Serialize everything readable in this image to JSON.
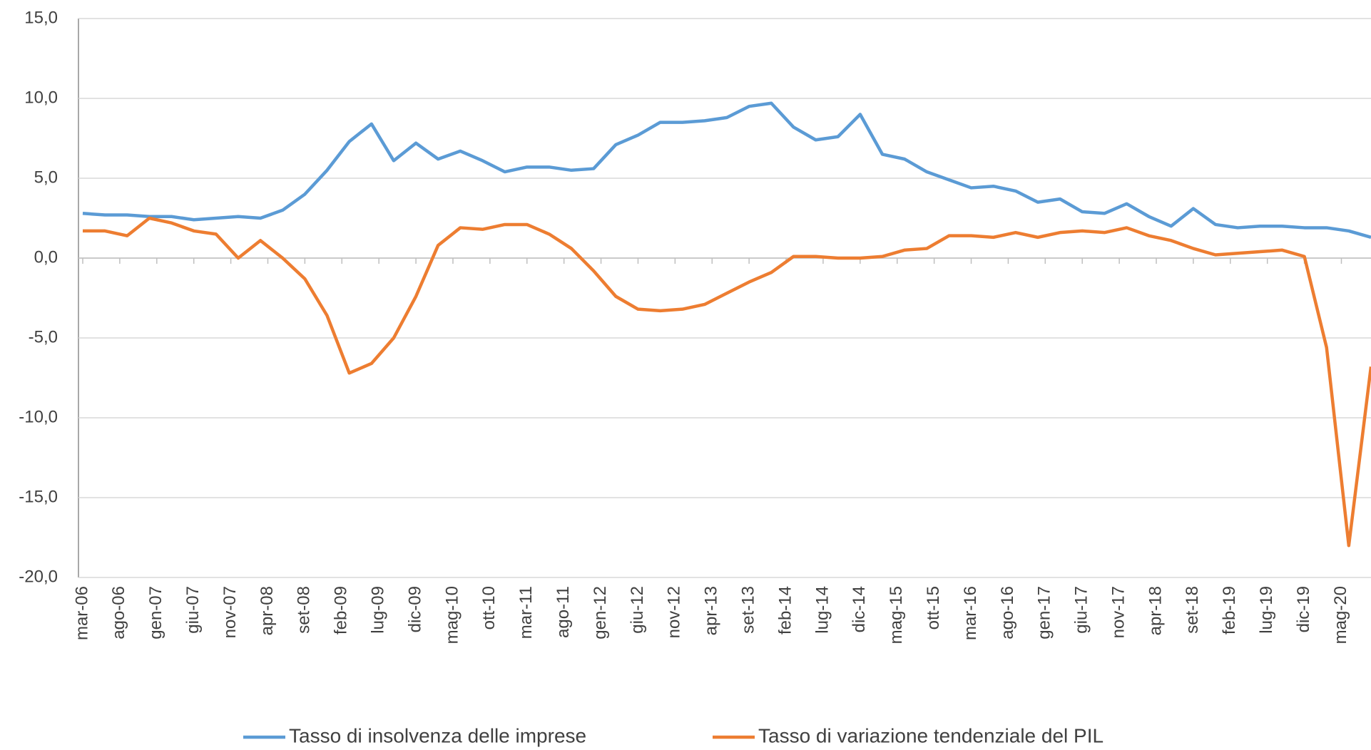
{
  "chart_data": {
    "type": "line",
    "x": [
      0,
      3,
      6,
      9,
      12,
      15,
      18,
      21,
      24,
      27,
      30,
      33,
      36,
      39,
      42,
      45,
      48,
      51,
      54,
      57,
      60,
      63,
      66,
      69,
      72,
      75,
      78,
      81,
      84,
      87,
      90,
      93,
      96,
      99,
      102,
      105,
      108,
      111,
      114,
      117,
      120,
      123,
      126,
      129,
      132,
      135,
      138,
      141,
      144,
      147,
      150,
      153,
      156,
      159,
      162,
      165,
      168,
      171,
      174
    ],
    "xlim": [
      0,
      174
    ],
    "xticks": [
      {
        "value": 0,
        "label": "mar-06"
      },
      {
        "value": 5,
        "label": "ago-06"
      },
      {
        "value": 10,
        "label": "gen-07"
      },
      {
        "value": 15,
        "label": "giu-07"
      },
      {
        "value": 20,
        "label": "nov-07"
      },
      {
        "value": 25,
        "label": "apr-08"
      },
      {
        "value": 30,
        "label": "set-08"
      },
      {
        "value": 35,
        "label": "feb-09"
      },
      {
        "value": 40,
        "label": "lug-09"
      },
      {
        "value": 45,
        "label": "dic-09"
      },
      {
        "value": 50,
        "label": "mag-10"
      },
      {
        "value": 55,
        "label": "ott-10"
      },
      {
        "value": 60,
        "label": "mar-11"
      },
      {
        "value": 65,
        "label": "ago-11"
      },
      {
        "value": 70,
        "label": "gen-12"
      },
      {
        "value": 75,
        "label": "giu-12"
      },
      {
        "value": 80,
        "label": "nov-12"
      },
      {
        "value": 85,
        "label": "apr-13"
      },
      {
        "value": 90,
        "label": "set-13"
      },
      {
        "value": 95,
        "label": "feb-14"
      },
      {
        "value": 100,
        "label": "lug-14"
      },
      {
        "value": 105,
        "label": "dic-14"
      },
      {
        "value": 110,
        "label": "mag-15"
      },
      {
        "value": 115,
        "label": "ott-15"
      },
      {
        "value": 120,
        "label": "mar-16"
      },
      {
        "value": 125,
        "label": "ago-16"
      },
      {
        "value": 130,
        "label": "gen-17"
      },
      {
        "value": 135,
        "label": "giu-17"
      },
      {
        "value": 140,
        "label": "nov-17"
      },
      {
        "value": 145,
        "label": "apr-18"
      },
      {
        "value": 150,
        "label": "set-18"
      },
      {
        "value": 155,
        "label": "feb-19"
      },
      {
        "value": 160,
        "label": "lug-19"
      },
      {
        "value": 165,
        "label": "dic-19"
      },
      {
        "value": 170,
        "label": "mag-20"
      }
    ],
    "ylim": [
      -20,
      15
    ],
    "yticks": [
      {
        "value": 15,
        "label": "15,0"
      },
      {
        "value": 10,
        "label": "10,0"
      },
      {
        "value": 5,
        "label": "5,0"
      },
      {
        "value": 0,
        "label": "0,0"
      },
      {
        "value": -5,
        "label": "-5,0"
      },
      {
        "value": -10,
        "label": "-10,0"
      },
      {
        "value": -15,
        "label": "-15,0"
      },
      {
        "value": -20,
        "label": "-20,0"
      }
    ],
    "grid": true,
    "legend": "bottom",
    "series": [
      {
        "name": "Tasso di insolvenza delle imprese",
        "color": "#5b9bd5",
        "values": [
          2.8,
          2.7,
          2.7,
          2.6,
          2.6,
          2.4,
          2.5,
          2.6,
          2.5,
          3.0,
          4.0,
          5.5,
          7.3,
          8.4,
          6.1,
          7.2,
          6.2,
          6.7,
          6.1,
          5.4,
          5.7,
          5.7,
          5.5,
          5.6,
          7.1,
          7.7,
          8.5,
          8.5,
          8.6,
          8.8,
          9.5,
          9.7,
          8.2,
          7.4,
          7.6,
          9.0,
          6.5,
          6.2,
          5.4,
          4.9,
          4.4,
          4.5,
          4.2,
          3.5,
          3.7,
          2.9,
          2.8,
          3.4,
          2.6,
          2.0,
          3.1,
          2.1,
          1.9,
          2.0,
          2.0,
          1.9,
          1.9,
          1.7,
          1.3
        ]
      },
      {
        "name": "Tasso di variazione tendenziale del PIL",
        "color": "#ed7d31",
        "values": [
          1.7,
          1.7,
          1.4,
          2.5,
          2.2,
          1.7,
          1.5,
          0.0,
          1.1,
          0.0,
          -1.3,
          -3.6,
          -7.2,
          -6.6,
          -5.0,
          -2.4,
          0.8,
          1.9,
          1.8,
          2.1,
          2.1,
          1.5,
          0.6,
          -0.8,
          -2.4,
          -3.2,
          -3.3,
          -3.2,
          -2.9,
          -2.2,
          -1.5,
          -0.9,
          0.1,
          0.1,
          0.0,
          0.0,
          0.1,
          0.5,
          0.6,
          1.4,
          1.4,
          1.3,
          1.6,
          1.3,
          1.6,
          1.7,
          1.6,
          1.9,
          1.4,
          1.1,
          0.6,
          0.2,
          0.3,
          0.4,
          0.5,
          0.1,
          -5.6,
          -18.0,
          -6.8
        ]
      }
    ]
  }
}
